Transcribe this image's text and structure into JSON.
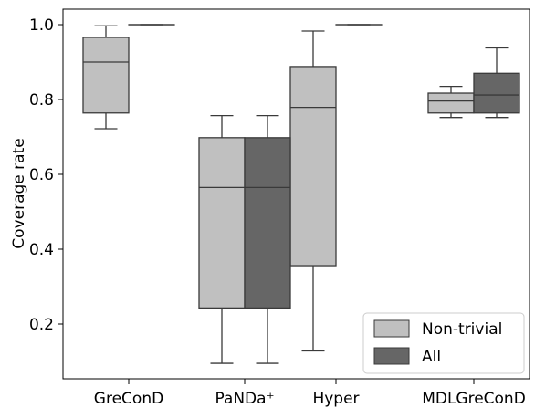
{
  "chart_data": {
    "type": "boxplot",
    "ylabel": "Coverage rate",
    "xlabel": "",
    "ylim": [
      0.03,
      1.04
    ],
    "yticks": [
      "0.2",
      "0.4",
      "0.6",
      "0.8",
      "1.0"
    ],
    "categories": [
      "GreConD",
      "PaNDa⁺",
      "Hyper",
      "MDLGreConD"
    ],
    "legend": {
      "position": "lower-right"
    },
    "series": [
      {
        "name": "Non-trivial",
        "color": "#c0c0c0",
        "boxes": [
          {
            "min": 0.722,
            "q1": 0.764,
            "median": 0.9,
            "q3": 0.966,
            "max": 0.997
          },
          {
            "min": 0.095,
            "q1": 0.243,
            "median": 0.565,
            "q3": 0.698,
            "max": 0.757
          },
          {
            "min": 0.128,
            "q1": 0.356,
            "median": 0.779,
            "q3": 0.888,
            "max": 0.983
          },
          {
            "min": 0.752,
            "q1": 0.764,
            "median": 0.796,
            "q3": 0.817,
            "max": 0.835
          }
        ]
      },
      {
        "name": "All",
        "color": "#666666",
        "boxes": [
          {
            "min": 1.0,
            "q1": 1.0,
            "median": 1.0,
            "q3": 1.0,
            "max": 1.0
          },
          {
            "min": 0.095,
            "q1": 0.243,
            "median": 0.565,
            "q3": 0.698,
            "max": 0.757
          },
          {
            "min": 1.0,
            "q1": 1.0,
            "median": 1.0,
            "q3": 1.0,
            "max": 1.0
          },
          {
            "min": 0.752,
            "q1": 0.764,
            "median": 0.812,
            "q3": 0.87,
            "max": 0.938
          }
        ]
      }
    ]
  }
}
